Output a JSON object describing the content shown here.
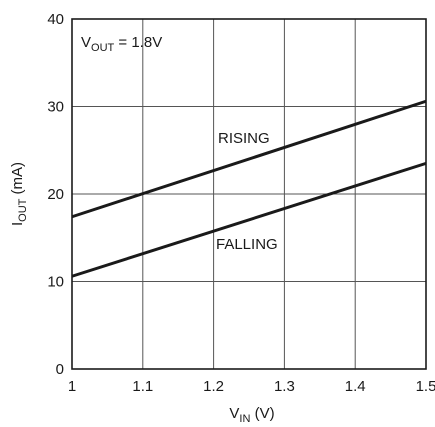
{
  "chart_data": {
    "type": "line",
    "xlim": [
      1,
      1.5
    ],
    "ylim": [
      0,
      40
    ],
    "x_ticks": [
      "1",
      "1.1",
      "1.2",
      "1.3",
      "1.4",
      "1.5"
    ],
    "y_ticks": [
      "0",
      "10",
      "20",
      "30",
      "40"
    ],
    "x_tick_values": [
      1,
      1.1,
      1.2,
      1.3,
      1.4,
      1.5
    ],
    "y_tick_values": [
      0,
      10,
      20,
      30,
      40
    ],
    "xlabel": {
      "main": "V",
      "sub": "IN",
      "unit": " (V)"
    },
    "ylabel": {
      "main": "I",
      "sub": "OUT",
      "unit": " (mA)"
    },
    "grid": true,
    "annotation": {
      "main": "V",
      "sub": "OUT",
      "rest": " = 1.8V"
    },
    "series": [
      {
        "name": "RISING",
        "x": [
          1,
          1.5
        ],
        "y": [
          17.4,
          30.6
        ]
      },
      {
        "name": "FALLING",
        "x": [
          1,
          1.5
        ],
        "y": [
          10.6,
          23.5
        ]
      }
    ]
  }
}
